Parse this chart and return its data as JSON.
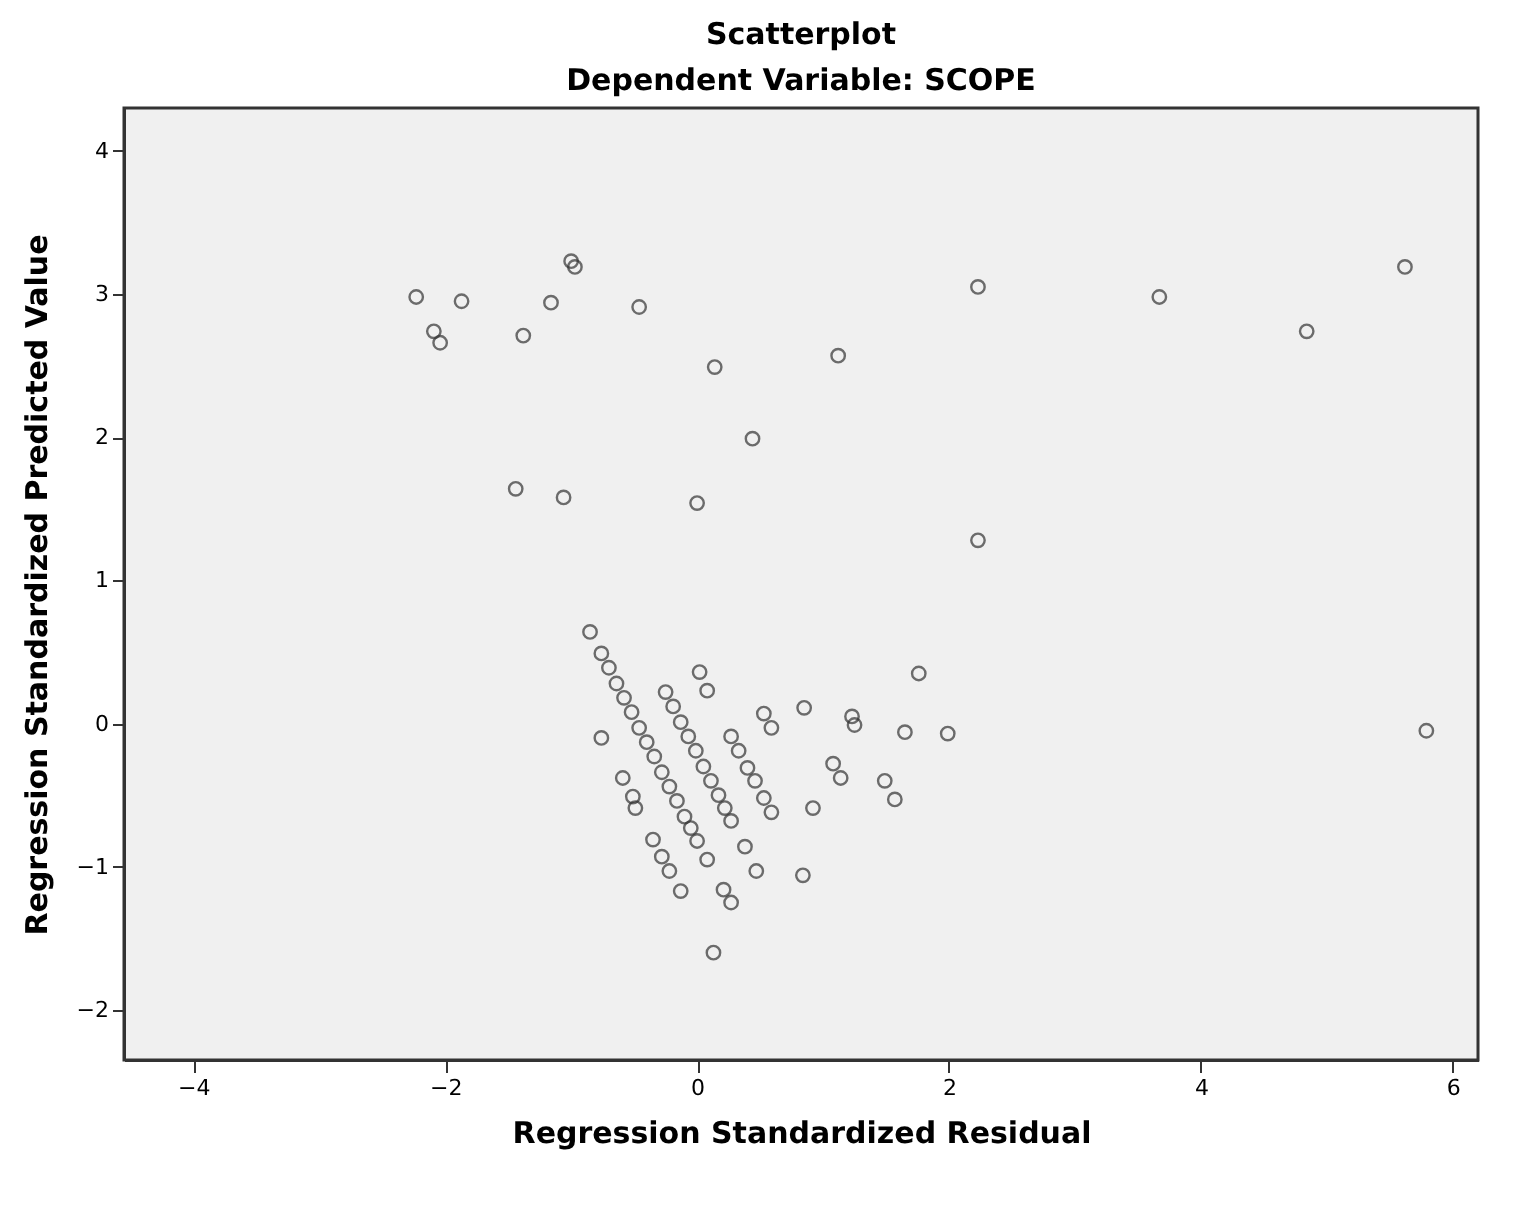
{
  "chart_data": {
    "type": "scatter",
    "title": "Scatterplot",
    "subtitle": "Dependent Variable: SCOPE",
    "xlabel": "Regression Standardized Residual",
    "ylabel": "Regression Standardized Predicted Value",
    "xlim": [
      -4.55,
      6.2
    ],
    "ylim": [
      -2.35,
      4.3
    ],
    "xticks": [
      -4,
      -2,
      0,
      2,
      4,
      6
    ],
    "yticks": [
      -2,
      -1,
      0,
      1,
      2,
      3,
      4
    ],
    "grid": false,
    "marker": "circle",
    "legend": false,
    "series": [
      {
        "color": "#333333",
        "x": [
          -2.23,
          -2.09,
          -2.04,
          -1.87,
          -1.38,
          -1.16,
          -1.0,
          -0.97,
          -0.46,
          0.14,
          -1.44,
          -1.06,
          0.0,
          0.44,
          1.12,
          2.23,
          3.67,
          4.84,
          5.62,
          2.23,
          5.79,
          -0.85,
          -0.76,
          0.02,
          0.08,
          0.85,
          0.53,
          0.59,
          1.23,
          1.25,
          1.76,
          1.65,
          1.99,
          1.08,
          1.14,
          1.49,
          1.57,
          0.92,
          -0.59,
          -0.51,
          -0.49,
          -0.35,
          -0.28,
          -0.22,
          -0.13,
          0.08,
          0.38,
          0.47,
          0.84,
          0.21,
          0.27,
          0.13,
          -0.76,
          -0.7,
          -0.64,
          -0.58,
          -0.52,
          -0.46,
          -0.4,
          -0.34,
          -0.28,
          -0.22,
          -0.16,
          -0.1,
          -0.05,
          0.0,
          -0.25,
          -0.19,
          -0.13,
          -0.07,
          -0.01,
          0.05,
          0.11,
          0.17,
          0.22,
          0.27,
          0.27,
          0.33,
          0.4,
          0.46,
          0.53,
          0.59
        ],
        "values": [
          2.98,
          2.74,
          2.66,
          2.95,
          2.71,
          2.94,
          3.23,
          3.19,
          2.91,
          2.49,
          1.64,
          1.58,
          1.54,
          1.99,
          2.57,
          3.05,
          2.98,
          2.74,
          3.19,
          1.28,
          -0.05,
          0.64,
          -0.1,
          0.36,
          0.23,
          0.11,
          0.07,
          -0.03,
          0.05,
          -0.01,
          0.35,
          -0.06,
          -0.07,
          -0.28,
          -0.38,
          -0.4,
          -0.53,
          -0.59,
          -0.38,
          -0.51,
          -0.59,
          -0.81,
          -0.93,
          -1.03,
          -1.17,
          -0.95,
          -0.86,
          -1.03,
          -1.06,
          -1.16,
          -1.25,
          -1.6,
          0.49,
          0.39,
          0.28,
          0.18,
          0.08,
          -0.03,
          -0.13,
          -0.23,
          -0.34,
          -0.44,
          -0.54,
          -0.65,
          -0.73,
          -0.82,
          0.22,
          0.12,
          0.01,
          -0.09,
          -0.19,
          -0.3,
          -0.4,
          -0.5,
          -0.59,
          -0.68,
          -0.09,
          -0.19,
          -0.31,
          -0.4,
          -0.52,
          -0.62
        ]
      }
    ]
  }
}
